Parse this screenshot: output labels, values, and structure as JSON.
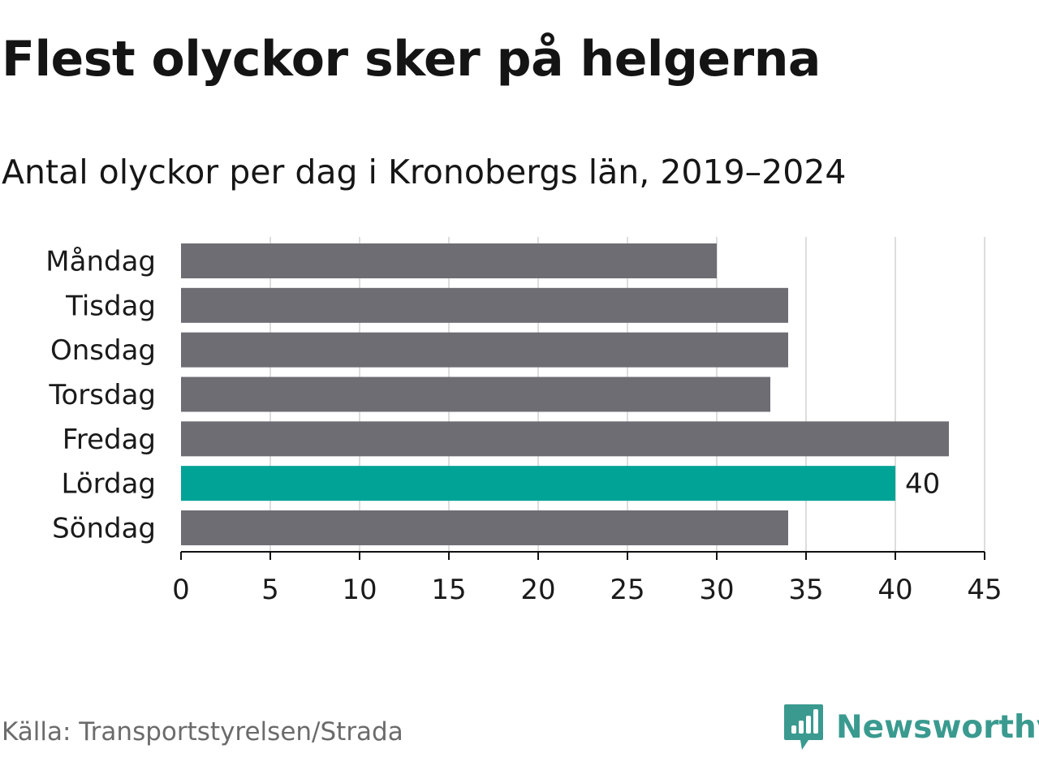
{
  "title": "Flest olyckor sker på helgerna",
  "subtitle": "Antal olyckor per dag i Kronobergs län, 2019–2024",
  "source": "Källa: Transportstyrelsen/Strada",
  "brand": {
    "name": "Newsworthy",
    "icon": "newsworthy-logo-icon",
    "color": "#3a9a8f"
  },
  "chart_data": {
    "type": "bar",
    "orientation": "horizontal",
    "categories": [
      "Måndag",
      "Tisdag",
      "Onsdag",
      "Torsdag",
      "Fredag",
      "Lördag",
      "Söndag"
    ],
    "values": [
      30,
      34,
      34,
      33,
      43,
      40,
      34
    ],
    "highlight_index": 5,
    "highlight_label": "40",
    "xlim": [
      0,
      45
    ],
    "xticks": [
      "0",
      "5",
      "10",
      "15",
      "20",
      "25",
      "30",
      "35",
      "40",
      "45"
    ],
    "grid": true,
    "colors": {
      "bar": "#6e6d74",
      "highlight": "#00a396",
      "grid": "#dddddd",
      "axis": "#111111"
    }
  }
}
